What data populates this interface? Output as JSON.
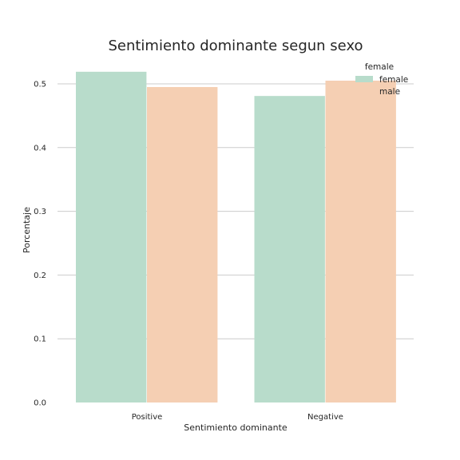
{
  "chart_data": {
    "type": "bar",
    "title": "Sentimiento dominante segun sexo",
    "xlabel": "Sentimiento dominante",
    "ylabel": "Porcentaje",
    "categories": [
      "Positive",
      "Negative"
    ],
    "series": [
      {
        "name": "female",
        "values": [
          0.519,
          0.481
        ],
        "color": "#b8dccb"
      },
      {
        "name": "male",
        "values": [
          0.495,
          0.505
        ],
        "color": "#f5cfb3"
      }
    ],
    "ylim": [
      0,
      0.5
    ],
    "yticks": [
      "0.0",
      "0.1",
      "0.2",
      "0.3",
      "0.4",
      "0.5"
    ],
    "grid": true,
    "legend": {
      "title": "female",
      "placement": "top-right"
    }
  }
}
